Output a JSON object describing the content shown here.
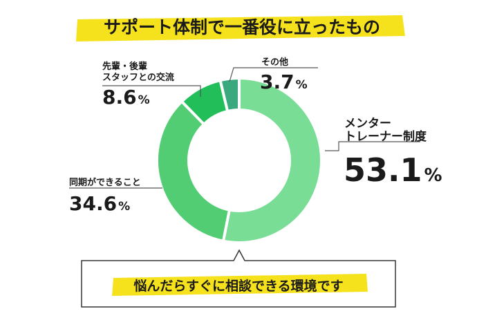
{
  "chart_data": {
    "type": "pie",
    "title": "サポート体制で一番役に立ったもの",
    "slices": [
      {
        "label_lines": [
          "メンター",
          "トレーナー制度"
        ],
        "value": 53.1,
        "color": "#79dd96"
      },
      {
        "label_lines": [
          "同期ができること"
        ],
        "value": 34.6,
        "color": "#52cd73"
      },
      {
        "label_lines": [
          "先輩・後輩",
          "スタッフとの交流"
        ],
        "value": 8.6,
        "color": "#22be5a"
      },
      {
        "label_lines": [
          "その他"
        ],
        "value": 3.7,
        "color": "#3aa97e"
      }
    ],
    "unit": "%",
    "callout": "悩んだらすぐに相談できる環境です"
  },
  "colors": {
    "highlight": "#f5e21d",
    "text": "#1a1a1a",
    "leader_line": "#555555"
  }
}
